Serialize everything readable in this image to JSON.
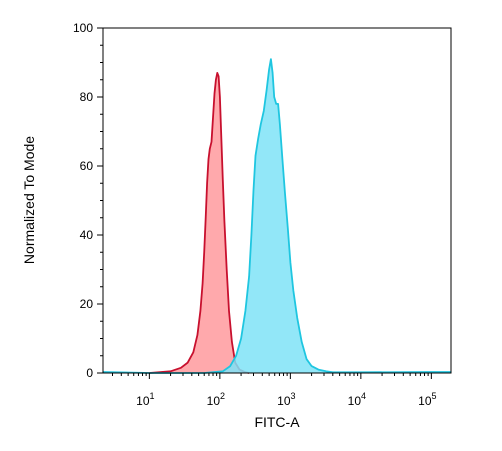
{
  "chart_data": {
    "type": "area",
    "title": "",
    "xlabel": "FITC-A",
    "ylabel": "Normalized To Mode",
    "x_scale": "log",
    "xlim": [
      2.2,
      190000
    ],
    "ylim": [
      0,
      100
    ],
    "grid": false,
    "legend": "none",
    "x_ticks": [
      {
        "base": "10",
        "exp": "1",
        "value": 10
      },
      {
        "base": "10",
        "exp": "2",
        "value": 100
      },
      {
        "base": "10",
        "exp": "3",
        "value": 1000
      },
      {
        "base": "10",
        "exp": "4",
        "value": 10000
      },
      {
        "base": "10",
        "exp": "5",
        "value": 100000
      }
    ],
    "y_ticks": [
      "0",
      "20",
      "40",
      "60",
      "80",
      "100"
    ],
    "series": [
      {
        "fill": "#ff9a9e",
        "stroke": "#c8102e",
        "points": [
          [
            10,
            0
          ],
          [
            20,
            0.5
          ],
          [
            28,
            1.5
          ],
          [
            35,
            3
          ],
          [
            42,
            6
          ],
          [
            48,
            11
          ],
          [
            53,
            18
          ],
          [
            57,
            26
          ],
          [
            60,
            35
          ],
          [
            63,
            45
          ],
          [
            66,
            55
          ],
          [
            69,
            62
          ],
          [
            72,
            65
          ],
          [
            76,
            67
          ],
          [
            80,
            74
          ],
          [
            84,
            81
          ],
          [
            88,
            85
          ],
          [
            92,
            87
          ],
          [
            96,
            86
          ],
          [
            100,
            80
          ],
          [
            104,
            70
          ],
          [
            110,
            56
          ],
          [
            116,
            44
          ],
          [
            125,
            30
          ],
          [
            135,
            18
          ],
          [
            148,
            9
          ],
          [
            165,
            3
          ],
          [
            190,
            1
          ],
          [
            230,
            0.2
          ],
          [
            260,
            0
          ]
        ]
      },
      {
        "fill": "#7fe3f7",
        "stroke": "#1fc6e0",
        "points": [
          [
            2.2,
            0.3
          ],
          [
            10,
            0
          ],
          [
            60,
            0
          ],
          [
            110,
            0.5
          ],
          [
            140,
            2
          ],
          [
            170,
            5
          ],
          [
            200,
            10
          ],
          [
            230,
            18
          ],
          [
            260,
            28
          ],
          [
            280,
            40
          ],
          [
            300,
            53
          ],
          [
            320,
            63
          ],
          [
            350,
            68
          ],
          [
            380,
            72
          ],
          [
            420,
            76
          ],
          [
            460,
            82
          ],
          [
            500,
            88
          ],
          [
            530,
            91
          ],
          [
            560,
            87
          ],
          [
            590,
            80
          ],
          [
            630,
            78
          ],
          [
            670,
            78
          ],
          [
            710,
            72
          ],
          [
            770,
            62
          ],
          [
            840,
            52
          ],
          [
            920,
            42
          ],
          [
            1000,
            32
          ],
          [
            1100,
            24
          ],
          [
            1250,
            16
          ],
          [
            1450,
            9
          ],
          [
            1700,
            4
          ],
          [
            2000,
            2
          ],
          [
            2500,
            1
          ],
          [
            3200,
            0.5
          ],
          [
            4000,
            0.2
          ],
          [
            10000,
            0.2
          ],
          [
            100000,
            0.3
          ],
          [
            190000,
            0.3
          ]
        ]
      }
    ]
  }
}
